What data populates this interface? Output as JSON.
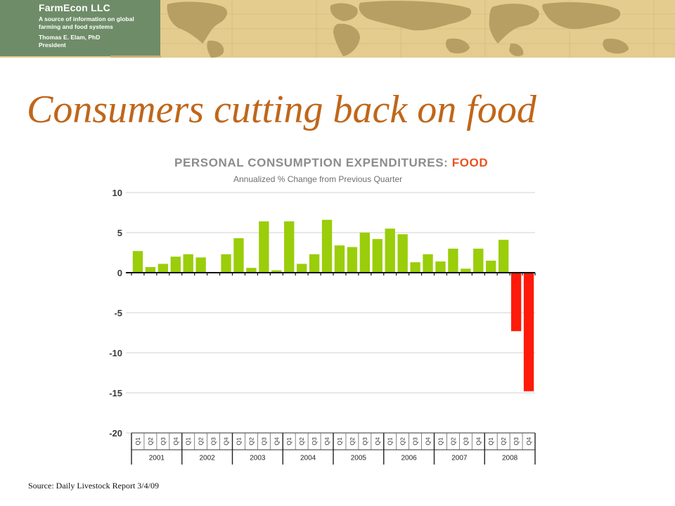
{
  "header": {
    "company": "FarmEcon LLC",
    "tagline": "A source of information on global farming and food systems",
    "person": "Thomas E. Elam, PhD",
    "role": "President",
    "colors": {
      "logo_bg": "#6f8c68",
      "map_bg": "#e4cc8e",
      "land": "#b79f63"
    }
  },
  "slide": {
    "title": "Consumers cutting back on food",
    "source": "Source: Daily Livestock Report 3/4/09"
  },
  "chart_data": {
    "type": "bar",
    "title_main": "PERSONAL CONSUMPTION EXPENDITURES:",
    "title_accent": "FOOD",
    "subtitle": "Annualized % Change from Previous Quarter",
    "xlabel": "",
    "ylabel": "",
    "ylim": [
      -20,
      10
    ],
    "yticks": [
      "10",
      "5",
      "0",
      "-5",
      "-10",
      "-15",
      "-20"
    ],
    "grid": true,
    "colors": {
      "positive": "#9acd0a",
      "negative": "#ff1a0a"
    },
    "years": [
      "2001",
      "2002",
      "2003",
      "2004",
      "2005",
      "2006",
      "2007",
      "2008"
    ],
    "quarter_labels": [
      "Q1",
      "Q2",
      "Q3",
      "Q4"
    ],
    "values": [
      2.7,
      0.7,
      1.1,
      2.0,
      2.3,
      1.9,
      null,
      2.3,
      4.3,
      0.6,
      6.4,
      0.3,
      6.4,
      1.1,
      2.3,
      6.6,
      3.4,
      3.2,
      5.0,
      4.2,
      5.5,
      4.8,
      1.3,
      2.3,
      1.4,
      3.0,
      0.5,
      3.0,
      1.5,
      4.1,
      -7.3,
      -14.8
    ]
  }
}
